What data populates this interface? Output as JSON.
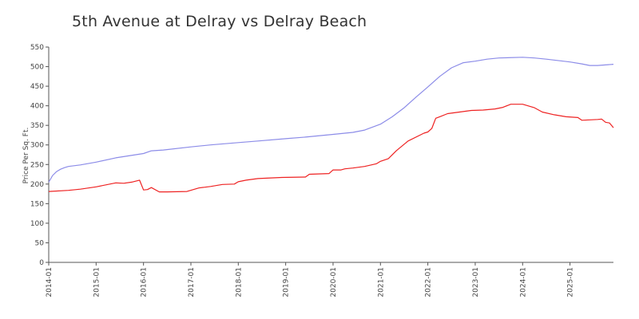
{
  "chart_data": {
    "type": "line",
    "title": "5th Avenue at Delray vs Delray Beach",
    "ylabel": "Price Per Sq. Ft.",
    "xlabel": "",
    "ylim": [
      0,
      550
    ],
    "yticks": [
      0,
      50,
      100,
      150,
      200,
      250,
      300,
      350,
      400,
      450,
      500,
      550
    ],
    "xlim": [
      "2014-01",
      "2025-12"
    ],
    "xticks": [
      "2014-01",
      "2015-01",
      "2016-01",
      "2017-01",
      "2018-01",
      "2019-01",
      "2020-01",
      "2021-01",
      "2022-01",
      "2023-01",
      "2024-01",
      "2025-01"
    ],
    "grid": false,
    "legend": "none",
    "series": [
      {
        "color": "#8c8ce8",
        "points": [
          [
            "2014-01",
            205
          ],
          [
            "2014-02",
            222
          ],
          [
            "2014-03",
            232
          ],
          [
            "2014-04",
            238
          ],
          [
            "2014-05",
            242
          ],
          [
            "2014-06",
            245
          ],
          [
            "2014-09",
            249
          ],
          [
            "2015-01",
            256
          ],
          [
            "2015-06",
            267
          ],
          [
            "2016-01",
            278
          ],
          [
            "2016-03",
            285
          ],
          [
            "2016-06",
            287
          ],
          [
            "2017-01",
            295
          ],
          [
            "2017-06",
            300
          ],
          [
            "2018-01",
            306
          ],
          [
            "2018-06",
            310
          ],
          [
            "2019-01",
            316
          ],
          [
            "2019-06",
            320
          ],
          [
            "2020-01",
            327
          ],
          [
            "2020-06",
            332
          ],
          [
            "2020-09",
            338
          ],
          [
            "2021-01",
            353
          ],
          [
            "2021-04",
            372
          ],
          [
            "2021-07",
            395
          ],
          [
            "2021-10",
            422
          ],
          [
            "2022-01",
            448
          ],
          [
            "2022-04",
            475
          ],
          [
            "2022-07",
            497
          ],
          [
            "2022-10",
            510
          ],
          [
            "2023-01",
            514
          ],
          [
            "2023-04",
            519
          ],
          [
            "2023-07",
            522
          ],
          [
            "2024-01",
            524
          ],
          [
            "2024-04",
            522
          ],
          [
            "2024-07",
            519
          ],
          [
            "2025-01",
            512
          ],
          [
            "2025-04",
            507
          ],
          [
            "2025-06",
            503
          ],
          [
            "2025-08",
            503
          ],
          [
            "2025-12",
            506
          ]
        ]
      },
      {
        "color": "#ee2222",
        "points": [
          [
            "2014-01",
            181
          ],
          [
            "2014-06",
            184
          ],
          [
            "2014-09",
            187
          ],
          [
            "2015-01",
            193
          ],
          [
            "2015-06",
            203
          ],
          [
            "2015-08",
            202
          ],
          [
            "2015-10",
            205
          ],
          [
            "2015-12",
            210
          ],
          [
            "2016-01",
            185
          ],
          [
            "2016-02",
            186
          ],
          [
            "2016-03",
            191
          ],
          [
            "2016-05",
            180
          ],
          [
            "2016-07",
            180
          ],
          [
            "2016-12",
            181
          ],
          [
            "2017-03",
            190
          ],
          [
            "2017-06",
            194
          ],
          [
            "2017-09",
            199
          ],
          [
            "2017-12",
            200
          ],
          [
            "2018-01",
            206
          ],
          [
            "2018-03",
            210
          ],
          [
            "2018-06",
            214
          ],
          [
            "2018-12",
            217
          ],
          [
            "2019-06",
            218
          ],
          [
            "2019-07",
            225
          ],
          [
            "2019-12",
            227
          ],
          [
            "2020-01",
            236
          ],
          [
            "2020-03",
            236
          ],
          [
            "2020-04",
            239
          ],
          [
            "2020-06",
            241
          ],
          [
            "2020-09",
            245
          ],
          [
            "2020-12",
            252
          ],
          [
            "2021-01",
            258
          ],
          [
            "2021-03",
            265
          ],
          [
            "2021-05",
            285
          ],
          [
            "2021-08",
            310
          ],
          [
            "2021-12",
            330
          ],
          [
            "2022-01",
            333
          ],
          [
            "2022-02",
            342
          ],
          [
            "2022-03",
            368
          ],
          [
            "2022-04",
            372
          ],
          [
            "2022-06",
            380
          ],
          [
            "2022-09",
            384
          ],
          [
            "2022-12",
            388
          ],
          [
            "2023-03",
            389
          ],
          [
            "2023-06",
            392
          ],
          [
            "2023-08",
            396
          ],
          [
            "2023-10",
            404
          ],
          [
            "2024-01",
            404
          ],
          [
            "2024-04",
            395
          ],
          [
            "2024-06",
            384
          ],
          [
            "2024-09",
            377
          ],
          [
            "2024-12",
            372
          ],
          [
            "2025-03",
            370
          ],
          [
            "2025-04",
            363
          ],
          [
            "2025-08",
            365
          ],
          [
            "2025-09",
            366
          ],
          [
            "2025-10",
            358
          ],
          [
            "2025-11",
            356
          ],
          [
            "2025-12",
            344
          ]
        ]
      }
    ]
  }
}
